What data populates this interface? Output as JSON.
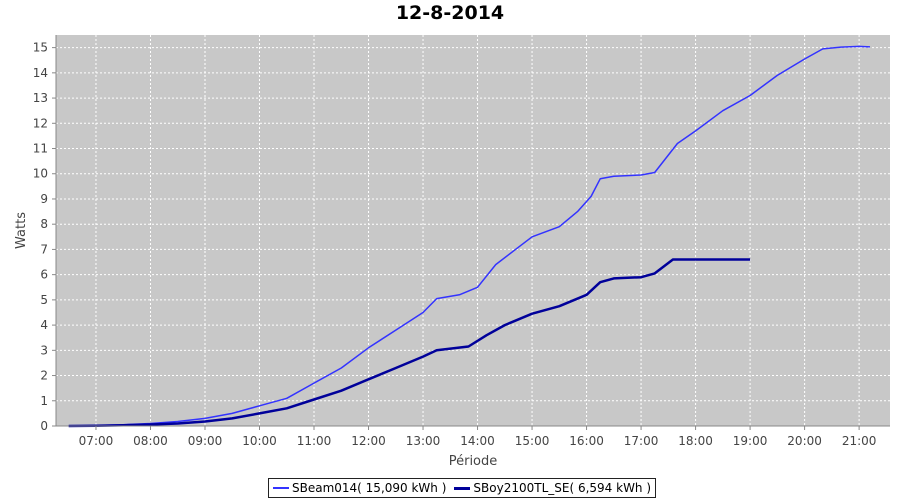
{
  "chart_data": {
    "type": "line",
    "title": "12-8-2014",
    "xlabel": "Période",
    "ylabel": "Watts",
    "xlim": [
      "06:16",
      "21:34"
    ],
    "ylim": [
      0,
      15.5
    ],
    "x_ticks": [
      "07:00",
      "08:00",
      "09:00",
      "10:00",
      "11:00",
      "12:00",
      "13:00",
      "14:00",
      "15:00",
      "16:00",
      "17:00",
      "18:00",
      "19:00",
      "20:00",
      "21:00"
    ],
    "y_ticks": [
      0,
      1,
      2,
      3,
      4,
      5,
      6,
      7,
      8,
      9,
      10,
      11,
      12,
      13,
      14,
      15
    ],
    "grid": true,
    "legend_position": "bottom",
    "background": "#c8c8c8",
    "series": [
      {
        "name": "SBeam014( 15,090 kWh )",
        "color": "#3333ff",
        "points": [
          [
            "06:30",
            0
          ],
          [
            "07:00",
            0.02
          ],
          [
            "07:30",
            0.05
          ],
          [
            "08:00",
            0.1
          ],
          [
            "08:30",
            0.18
          ],
          [
            "09:00",
            0.3
          ],
          [
            "09:30",
            0.5
          ],
          [
            "10:00",
            0.8
          ],
          [
            "10:30",
            1.1
          ],
          [
            "11:00",
            1.7
          ],
          [
            "11:30",
            2.3
          ],
          [
            "12:00",
            3.1
          ],
          [
            "12:30",
            3.8
          ],
          [
            "13:00",
            4.5
          ],
          [
            "13:15",
            5.05
          ],
          [
            "13:40",
            5.2
          ],
          [
            "14:00",
            5.5
          ],
          [
            "14:20",
            6.4
          ],
          [
            "14:40",
            6.95
          ],
          [
            "15:00",
            7.5
          ],
          [
            "15:30",
            7.9
          ],
          [
            "15:50",
            8.5
          ],
          [
            "16:05",
            9.1
          ],
          [
            "16:15",
            9.8
          ],
          [
            "16:30",
            9.9
          ],
          [
            "17:00",
            9.95
          ],
          [
            "17:15",
            10.05
          ],
          [
            "17:40",
            11.2
          ],
          [
            "18:00",
            11.7
          ],
          [
            "18:30",
            12.5
          ],
          [
            "19:00",
            13.1
          ],
          [
            "19:30",
            13.9
          ],
          [
            "20:00",
            14.55
          ],
          [
            "20:20",
            14.95
          ],
          [
            "20:40",
            15.02
          ],
          [
            "21:00",
            15.05
          ],
          [
            "21:12",
            15.03
          ]
        ]
      },
      {
        "name": "SBoy2100TL_SE( 6,594 kWh )",
        "color": "#00009a",
        "points": [
          [
            "06:30",
            0
          ],
          [
            "07:00",
            0.01
          ],
          [
            "07:30",
            0.03
          ],
          [
            "08:00",
            0.06
          ],
          [
            "08:30",
            0.1
          ],
          [
            "09:00",
            0.18
          ],
          [
            "09:30",
            0.3
          ],
          [
            "10:00",
            0.5
          ],
          [
            "10:30",
            0.7
          ],
          [
            "11:00",
            1.05
          ],
          [
            "11:30",
            1.4
          ],
          [
            "12:00",
            1.85
          ],
          [
            "12:30",
            2.3
          ],
          [
            "13:00",
            2.75
          ],
          [
            "13:15",
            3.0
          ],
          [
            "13:50",
            3.15
          ],
          [
            "14:10",
            3.6
          ],
          [
            "14:30",
            4.0
          ],
          [
            "15:00",
            4.45
          ],
          [
            "15:30",
            4.75
          ],
          [
            "16:00",
            5.2
          ],
          [
            "16:15",
            5.7
          ],
          [
            "16:30",
            5.85
          ],
          [
            "17:00",
            5.9
          ],
          [
            "17:15",
            6.05
          ],
          [
            "17:35",
            6.6
          ],
          [
            "18:00",
            6.6
          ],
          [
            "19:00",
            6.6
          ]
        ]
      }
    ]
  }
}
